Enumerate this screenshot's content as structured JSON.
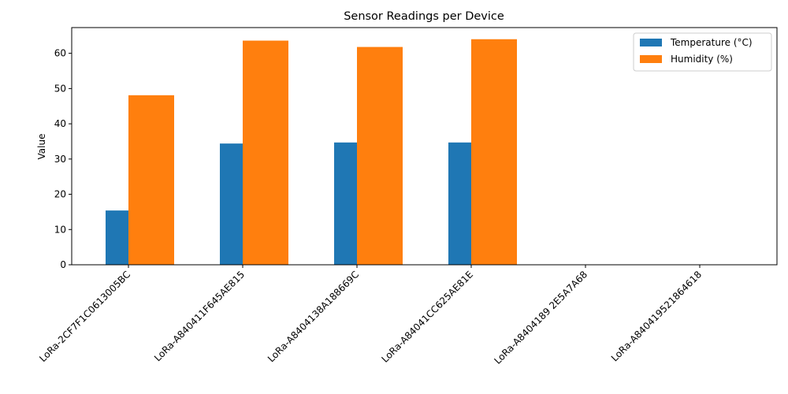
{
  "chart_data": {
    "type": "bar",
    "title": "Sensor Readings per Device",
    "xlabel": "",
    "ylabel": "Value",
    "ylim": [
      0,
      67.3
    ],
    "yticks": [
      0,
      10,
      20,
      30,
      40,
      50,
      60
    ],
    "categories": [
      "LoRa-2CF7F1C0613005BC",
      "LoRa-A840411F645AE815",
      "LoRa-A8404138A188669C",
      "LoRa-A84041CC625AE81E",
      "LoRa-A8404189 2E5A7A68",
      "LoRa-A840419521864618"
    ],
    "series": [
      {
        "name": "Temperature (°C)",
        "color": "#1f77b4",
        "values": [
          15.4,
          34.4,
          34.7,
          34.7,
          0,
          0
        ]
      },
      {
        "name": "Humidity (%)",
        "color": "#ff7f0e",
        "values": [
          48.1,
          63.6,
          61.8,
          64.0,
          0,
          0
        ]
      }
    ],
    "legend_position": "top-right",
    "grid": false
  }
}
